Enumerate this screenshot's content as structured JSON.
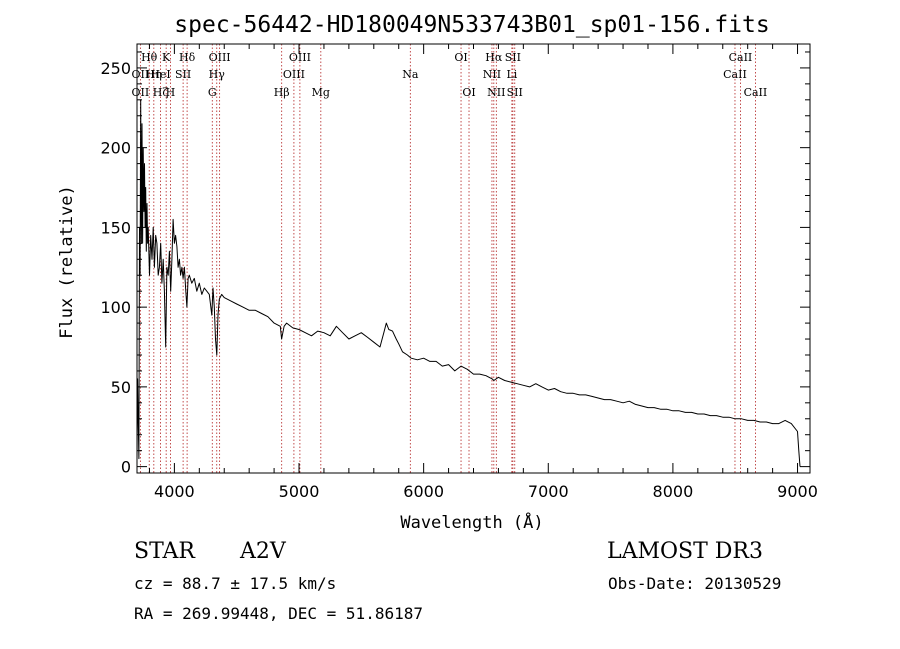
{
  "chart_data": {
    "type": "line",
    "title": "spec-56442-HD180049N533743B01_sp01-156.fits",
    "xlabel": "Wavelength (Å)",
    "ylabel": "Flux (relative)",
    "xlim": [
      3700,
      9100
    ],
    "ylim": [
      -4,
      265
    ],
    "x_ticks": [
      4000,
      5000,
      6000,
      7000,
      8000,
      9000
    ],
    "y_ticks": [
      0,
      50,
      100,
      150,
      200,
      250
    ],
    "grid": false,
    "series": [
      {
        "name": "spectrum",
        "points": [
          [
            3700,
            5
          ],
          [
            3705,
            55
          ],
          [
            3710,
            30
          ],
          [
            3715,
            5
          ],
          [
            3720,
            150
          ],
          [
            3725,
            120
          ],
          [
            3730,
            230
          ],
          [
            3735,
            140
          ],
          [
            3740,
            215
          ],
          [
            3745,
            140
          ],
          [
            3750,
            200
          ],
          [
            3755,
            160
          ],
          [
            3760,
            190
          ],
          [
            3765,
            150
          ],
          [
            3770,
            175
          ],
          [
            3775,
            135
          ],
          [
            3780,
            165
          ],
          [
            3785,
            140
          ],
          [
            3790,
            150
          ],
          [
            3800,
            120
          ],
          [
            3810,
            145
          ],
          [
            3820,
            130
          ],
          [
            3830,
            150
          ],
          [
            3840,
            125
          ],
          [
            3850,
            145
          ],
          [
            3860,
            140
          ],
          [
            3870,
            120
          ],
          [
            3880,
            125
          ],
          [
            3890,
            140
          ],
          [
            3900,
            115
          ],
          [
            3910,
            130
          ],
          [
            3920,
            110
          ],
          [
            3930,
            75
          ],
          [
            3940,
            125
          ],
          [
            3950,
            120
          ],
          [
            3960,
            135
          ],
          [
            3970,
            110
          ],
          [
            3980,
            130
          ],
          [
            3990,
            155
          ],
          [
            4000,
            140
          ],
          [
            4010,
            145
          ],
          [
            4020,
            138
          ],
          [
            4030,
            125
          ],
          [
            4040,
            130
          ],
          [
            4050,
            120
          ],
          [
            4060,
            125
          ],
          [
            4070,
            118
          ],
          [
            4080,
            125
          ],
          [
            4090,
            112
          ],
          [
            4100,
            100
          ],
          [
            4110,
            118
          ],
          [
            4120,
            120
          ],
          [
            4140,
            115
          ],
          [
            4160,
            118
          ],
          [
            4180,
            110
          ],
          [
            4200,
            115
          ],
          [
            4220,
            108
          ],
          [
            4240,
            112
          ],
          [
            4260,
            110
          ],
          [
            4280,
            108
          ],
          [
            4300,
            95
          ],
          [
            4310,
            112
          ],
          [
            4320,
            100
          ],
          [
            4330,
            80
          ],
          [
            4340,
            70
          ],
          [
            4350,
            95
          ],
          [
            4360,
            105
          ],
          [
            4380,
            108
          ],
          [
            4400,
            106
          ],
          [
            4450,
            104
          ],
          [
            4500,
            102
          ],
          [
            4550,
            100
          ],
          [
            4600,
            98
          ],
          [
            4650,
            98
          ],
          [
            4700,
            96
          ],
          [
            4750,
            94
          ],
          [
            4800,
            90
          ],
          [
            4850,
            88
          ],
          [
            4860,
            80
          ],
          [
            4880,
            88
          ],
          [
            4900,
            90
          ],
          [
            4950,
            87
          ],
          [
            5000,
            86
          ],
          [
            5050,
            84
          ],
          [
            5100,
            82
          ],
          [
            5150,
            85
          ],
          [
            5200,
            84
          ],
          [
            5250,
            82
          ],
          [
            5300,
            88
          ],
          [
            5350,
            84
          ],
          [
            5400,
            80
          ],
          [
            5450,
            82
          ],
          [
            5500,
            84
          ],
          [
            5550,
            81
          ],
          [
            5600,
            78
          ],
          [
            5650,
            75
          ],
          [
            5680,
            84
          ],
          [
            5700,
            90
          ],
          [
            5720,
            86
          ],
          [
            5750,
            85
          ],
          [
            5780,
            80
          ],
          [
            5800,
            77
          ],
          [
            5830,
            72
          ],
          [
            5870,
            70
          ],
          [
            5900,
            68
          ],
          [
            5950,
            67
          ],
          [
            6000,
            68
          ],
          [
            6050,
            66
          ],
          [
            6100,
            66
          ],
          [
            6150,
            63
          ],
          [
            6200,
            64
          ],
          [
            6250,
            60
          ],
          [
            6300,
            63
          ],
          [
            6350,
            61
          ],
          [
            6400,
            58
          ],
          [
            6450,
            58
          ],
          [
            6500,
            57
          ],
          [
            6550,
            55
          ],
          [
            6563,
            54
          ],
          [
            6600,
            56
          ],
          [
            6650,
            54
          ],
          [
            6700,
            53
          ],
          [
            6750,
            52
          ],
          [
            6800,
            51
          ],
          [
            6850,
            50
          ],
          [
            6900,
            52
          ],
          [
            6950,
            50
          ],
          [
            7000,
            48
          ],
          [
            7050,
            49
          ],
          [
            7100,
            47
          ],
          [
            7150,
            46
          ],
          [
            7200,
            46
          ],
          [
            7250,
            45
          ],
          [
            7300,
            45
          ],
          [
            7350,
            44
          ],
          [
            7400,
            43
          ],
          [
            7450,
            42
          ],
          [
            7500,
            42
          ],
          [
            7550,
            41
          ],
          [
            7600,
            40
          ],
          [
            7650,
            41
          ],
          [
            7700,
            39
          ],
          [
            7750,
            38
          ],
          [
            7800,
            37
          ],
          [
            7850,
            37
          ],
          [
            7900,
            36
          ],
          [
            7950,
            36
          ],
          [
            8000,
            35
          ],
          [
            8050,
            35
          ],
          [
            8100,
            34
          ],
          [
            8150,
            34
          ],
          [
            8200,
            33
          ],
          [
            8250,
            33
          ],
          [
            8300,
            32
          ],
          [
            8350,
            32
          ],
          [
            8400,
            31
          ],
          [
            8450,
            31
          ],
          [
            8500,
            30
          ],
          [
            8550,
            30
          ],
          [
            8600,
            29
          ],
          [
            8650,
            29
          ],
          [
            8700,
            28
          ],
          [
            8750,
            28
          ],
          [
            8800,
            27
          ],
          [
            8850,
            27
          ],
          [
            8900,
            29
          ],
          [
            8950,
            27
          ],
          [
            9000,
            22
          ],
          [
            9010,
            10
          ],
          [
            9020,
            0
          ]
        ]
      }
    ],
    "line_markers": [
      {
        "label": "OII",
        "wavelength": 3727,
        "row": 1
      },
      {
        "label": "OII",
        "wavelength": 3727,
        "row": 2
      },
      {
        "label": "Hθ",
        "wavelength": 3798,
        "row": 0
      },
      {
        "label": "Hη",
        "wavelength": 3835,
        "row": 1
      },
      {
        "label": "Hζ",
        "wavelength": 3889,
        "row": 2
      },
      {
        "label": "HeI",
        "wavelength": 3889,
        "row": 1
      },
      {
        "label": "K",
        "wavelength": 3934,
        "row": 0
      },
      {
        "label": "SII",
        "wavelength": 4070,
        "row": 1
      },
      {
        "label": "H",
        "wavelength": 3968,
        "row": 2
      },
      {
        "label": "Hδ",
        "wavelength": 4102,
        "row": 0
      },
      {
        "label": "OIII",
        "wavelength": 4363,
        "row": 0
      },
      {
        "label": "Hγ",
        "wavelength": 4340,
        "row": 1
      },
      {
        "label": "G",
        "wavelength": 4304,
        "row": 2
      },
      {
        "label": "Hβ",
        "wavelength": 4861,
        "row": 2
      },
      {
        "label": "OIII",
        "wavelength": 5007,
        "row": 0
      },
      {
        "label": "OIII",
        "wavelength": 4959,
        "row": 1
      },
      {
        "label": "Mg",
        "wavelength": 5175,
        "row": 2
      },
      {
        "label": "Na",
        "wavelength": 5893,
        "row": 1
      },
      {
        "label": "OI",
        "wavelength": 6300,
        "row": 0
      },
      {
        "label": "OI",
        "wavelength": 6364,
        "row": 2
      },
      {
        "label": "Hα",
        "wavelength": 6563,
        "row": 0
      },
      {
        "label": "NII",
        "wavelength": 6548,
        "row": 1
      },
      {
        "label": "NII",
        "wavelength": 6583,
        "row": 2
      },
      {
        "label": "SII",
        "wavelength": 6716,
        "row": 0
      },
      {
        "label": "Li",
        "wavelength": 6708,
        "row": 1
      },
      {
        "label": "SII",
        "wavelength": 6731,
        "row": 2
      },
      {
        "label": "CaII",
        "wavelength": 8542,
        "row": 0
      },
      {
        "label": "CaII",
        "wavelength": 8498,
        "row": 1
      },
      {
        "label": "CaII",
        "wavelength": 8662,
        "row": 2
      }
    ],
    "marker_color": "#b22222"
  },
  "info": {
    "object_class": "STAR",
    "spectral_type": "A2V",
    "survey": "LAMOST DR3",
    "redshift": "cz = 88.7 ± 17.5 km/s",
    "obs_date": "Obs-Date: 20130529",
    "coords": "RA = 269.99448, DEC =  51.86187"
  }
}
